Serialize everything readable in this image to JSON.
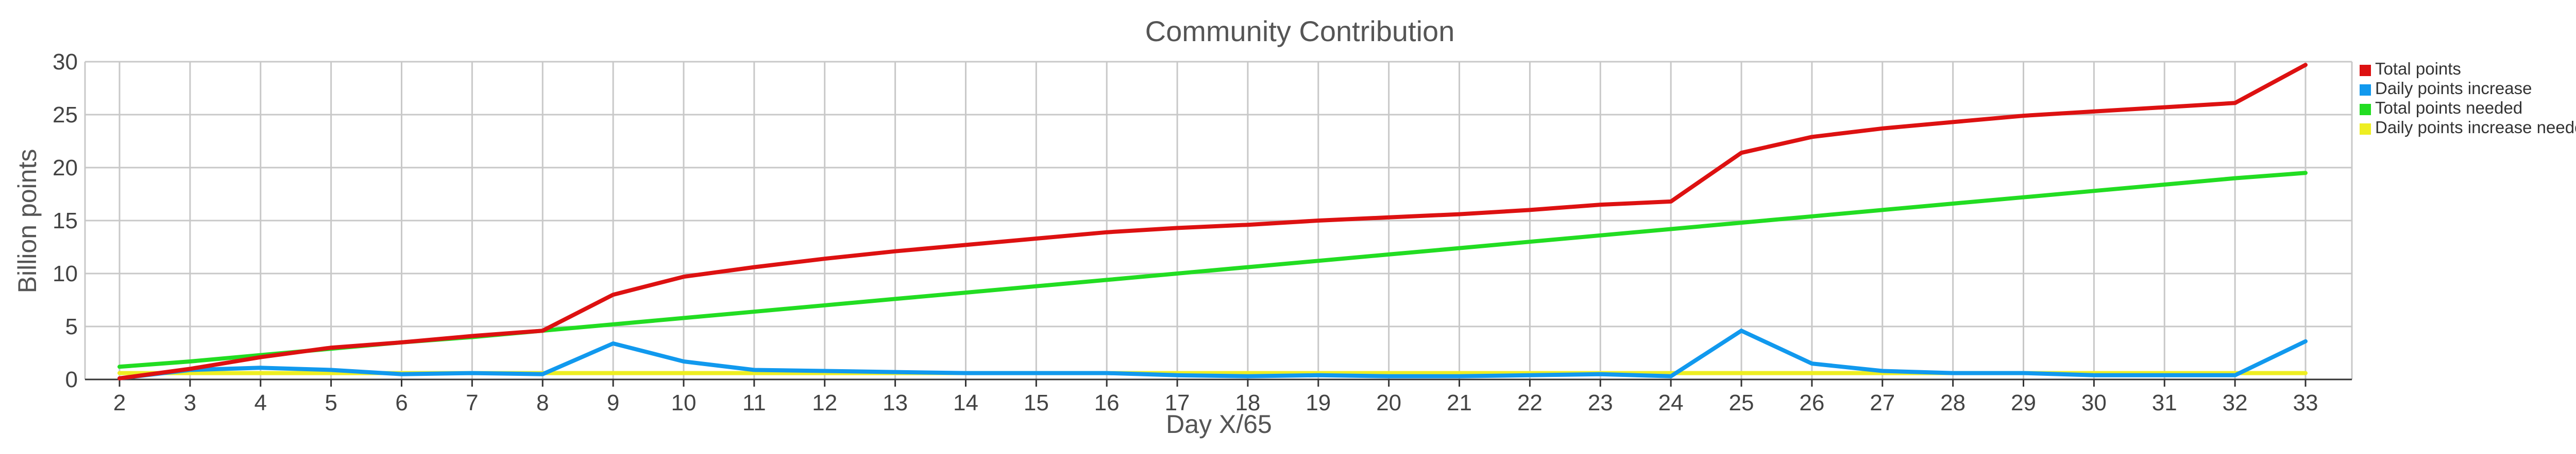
{
  "chart_data": {
    "type": "line",
    "title": "Community Contribution",
    "xlabel": "Day X/65",
    "ylabel": "Billion points",
    "x": [
      2,
      3,
      4,
      5,
      6,
      7,
      8,
      9,
      10,
      11,
      12,
      13,
      14,
      15,
      16,
      17,
      18,
      19,
      20,
      21,
      22,
      23,
      24,
      25,
      26,
      27,
      28,
      29,
      30,
      31,
      32,
      33
    ],
    "xlim": [
      2,
      33
    ],
    "ylim": [
      0,
      30
    ],
    "yticks": [
      0,
      5,
      10,
      15,
      20,
      25,
      30
    ],
    "grid": true,
    "legend_position": "top-right",
    "series": [
      {
        "name": "Total points",
        "color": "#dd1111",
        "values": [
          0.1,
          1.0,
          2.1,
          3.0,
          3.5,
          4.1,
          4.6,
          8.0,
          9.7,
          10.6,
          11.4,
          12.1,
          12.7,
          13.3,
          13.9,
          14.3,
          14.6,
          15.0,
          15.3,
          15.6,
          16.0,
          16.5,
          16.8,
          21.4,
          22.9,
          23.7,
          24.3,
          24.9,
          25.3,
          25.7,
          26.1,
          29.7
        ]
      },
      {
        "name": "Daily points increase",
        "color": "#1199ee",
        "values": [
          0.1,
          0.9,
          1.1,
          0.9,
          0.5,
          0.6,
          0.5,
          3.4,
          1.7,
          0.9,
          0.8,
          0.7,
          0.6,
          0.6,
          0.6,
          0.4,
          0.3,
          0.4,
          0.3,
          0.3,
          0.4,
          0.5,
          0.3,
          4.6,
          1.5,
          0.8,
          0.6,
          0.6,
          0.4,
          0.4,
          0.4,
          3.6
        ]
      },
      {
        "name": "Total points needed",
        "color": "#22dd22",
        "values": [
          1.2,
          1.7,
          2.3,
          2.9,
          3.5,
          4.0,
          4.6,
          5.2,
          5.8,
          6.4,
          7.0,
          7.6,
          8.2,
          8.8,
          9.4,
          10.0,
          10.6,
          11.2,
          11.8,
          12.4,
          13.0,
          13.6,
          14.2,
          14.8,
          15.4,
          16.0,
          16.6,
          17.2,
          17.8,
          18.4,
          19.0,
          19.5
        ]
      },
      {
        "name": "Daily points increase needed",
        "color": "#eeee22",
        "values": [
          0.6,
          0.6,
          0.6,
          0.6,
          0.6,
          0.6,
          0.6,
          0.6,
          0.6,
          0.6,
          0.6,
          0.6,
          0.6,
          0.6,
          0.6,
          0.6,
          0.6,
          0.6,
          0.6,
          0.6,
          0.6,
          0.6,
          0.6,
          0.6,
          0.6,
          0.6,
          0.6,
          0.6,
          0.6,
          0.6,
          0.6,
          0.6
        ]
      }
    ]
  }
}
